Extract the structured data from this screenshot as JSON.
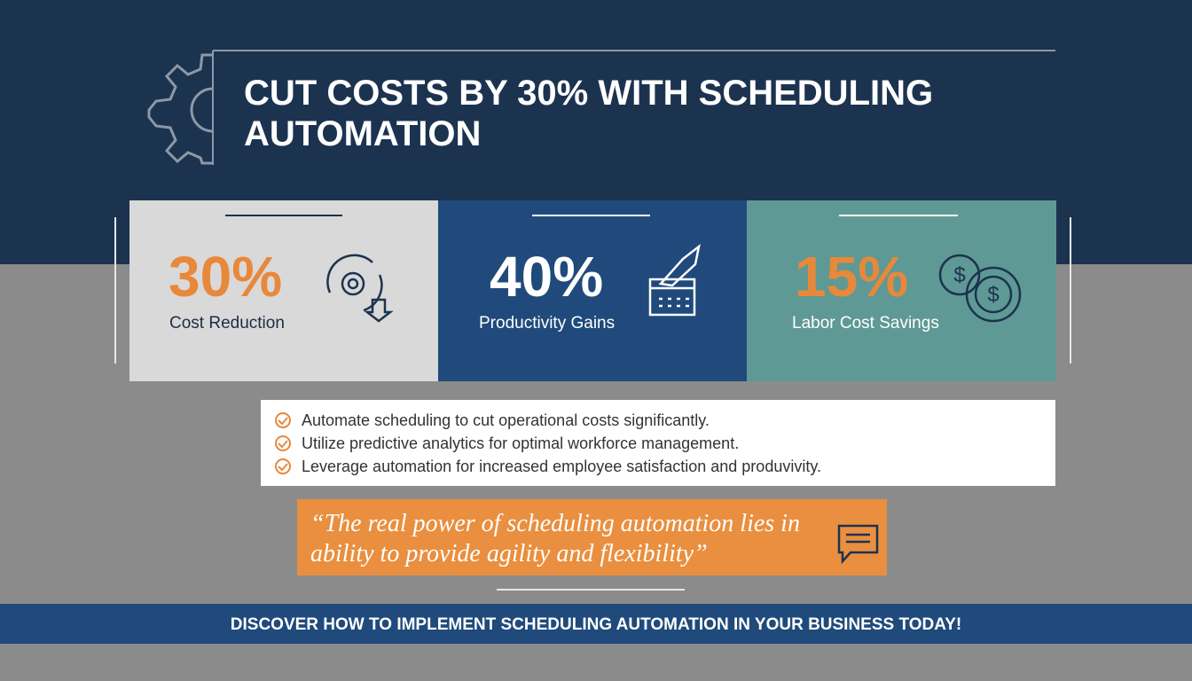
{
  "header": {
    "title_line1": "CUT COSTS BY 30% WITH SCHEDULING",
    "title_line2": "AUTOMATION"
  },
  "stats": [
    {
      "value": "30%",
      "label": "Cost Reduction"
    },
    {
      "value": "40%",
      "label": "Productivity Gains"
    },
    {
      "value": "15%",
      "label": "Labor Cost Savings"
    }
  ],
  "bullets": [
    "Automate scheduling to cut operational costs significantly.",
    "Utilize predictive analytics for optimal workforce management.",
    "Leverage automation for increased employee satisfaction and produvivity."
  ],
  "quote": {
    "line1": "“The real power of scheduling automation lies in",
    "line2": "ability to provide agility and flexibility”"
  },
  "footer": {
    "cta": "DISCOVER HOW TO IMPLEMENT SCHEDULING AUTOMATION IN YOUR BUSINESS TODAY!"
  }
}
